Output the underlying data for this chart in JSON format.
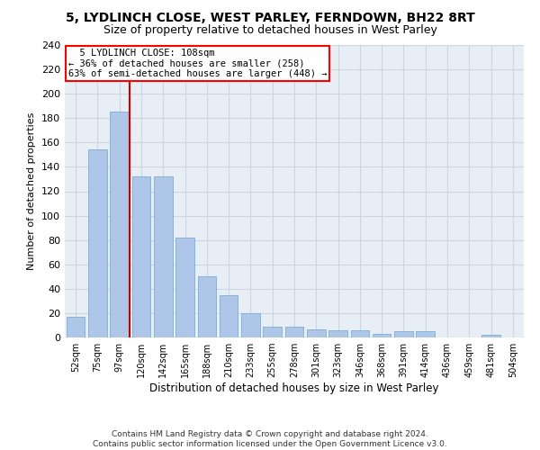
{
  "title1": "5, LYDLINCH CLOSE, WEST PARLEY, FERNDOWN, BH22 8RT",
  "title2": "Size of property relative to detached houses in West Parley",
  "xlabel": "Distribution of detached houses by size in West Parley",
  "ylabel": "Number of detached properties",
  "footer": "Contains HM Land Registry data © Crown copyright and database right 2024.\nContains public sector information licensed under the Open Government Licence v3.0.",
  "bar_labels": [
    "52sqm",
    "75sqm",
    "97sqm",
    "120sqm",
    "142sqm",
    "165sqm",
    "188sqm",
    "210sqm",
    "233sqm",
    "255sqm",
    "278sqm",
    "301sqm",
    "323sqm",
    "346sqm",
    "368sqm",
    "391sqm",
    "414sqm",
    "436sqm",
    "459sqm",
    "481sqm",
    "504sqm"
  ],
  "bar_values": [
    17,
    154,
    185,
    132,
    132,
    82,
    50,
    35,
    20,
    9,
    9,
    7,
    6,
    6,
    3,
    5,
    5,
    0,
    0,
    2,
    0
  ],
  "bar_color": "#aec6e8",
  "bar_edge_color": "#7aafd4",
  "vline_color": "#cc0000",
  "background_color": "#ffffff",
  "plot_bg_color": "#e8eef5",
  "grid_color": "#ccd5e0",
  "ylim": [
    0,
    240
  ],
  "yticks": [
    0,
    20,
    40,
    60,
    80,
    100,
    120,
    140,
    160,
    180,
    200,
    220,
    240
  ],
  "property_label": "5 LYDLINCH CLOSE: 108sqm",
  "pct_smaller": 36,
  "n_smaller": 258,
  "pct_larger_semi": 63,
  "n_larger_semi": 448,
  "vline_position": 2.45
}
